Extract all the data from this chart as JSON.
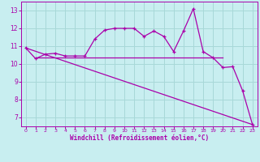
{
  "background_color": "#c8eef0",
  "grid_color": "#a8d8d8",
  "line_color": "#aa00aa",
  "xlabel": "Windchill (Refroidissement éolien,°C)",
  "xlim": [
    -0.5,
    23.5
  ],
  "ylim": [
    6.5,
    13.5
  ],
  "yticks": [
    7,
    8,
    9,
    10,
    11,
    12,
    13
  ],
  "xticks": [
    0,
    1,
    2,
    3,
    4,
    5,
    6,
    7,
    8,
    9,
    10,
    11,
    12,
    13,
    14,
    15,
    16,
    17,
    18,
    19,
    20,
    21,
    22,
    23
  ],
  "series1_x": [
    0,
    1,
    2,
    3,
    4,
    5,
    6,
    7,
    8,
    9,
    10,
    11,
    12,
    13,
    14,
    15,
    16,
    17,
    18,
    19,
    20,
    21,
    22,
    23
  ],
  "series1_y": [
    10.9,
    10.3,
    10.55,
    10.6,
    10.45,
    10.45,
    10.45,
    11.4,
    11.9,
    12.0,
    12.0,
    12.0,
    11.55,
    11.85,
    11.55,
    10.7,
    11.85,
    13.1,
    10.7,
    10.35,
    9.8,
    9.85,
    8.5,
    6.6
  ],
  "series2_x": [
    1,
    2,
    3,
    4,
    5,
    6,
    7,
    8,
    9,
    10,
    11,
    12,
    13,
    14,
    15,
    16,
    17,
    18,
    19,
    20
  ],
  "series2_y": [
    10.35,
    10.35,
    10.35,
    10.35,
    10.35,
    10.35,
    10.35,
    10.35,
    10.35,
    10.35,
    10.35,
    10.35,
    10.35,
    10.35,
    10.35,
    10.35,
    10.35,
    10.35,
    10.35,
    10.35
  ],
  "series3_x": [
    0,
    23
  ],
  "series3_y": [
    10.9,
    6.6
  ]
}
